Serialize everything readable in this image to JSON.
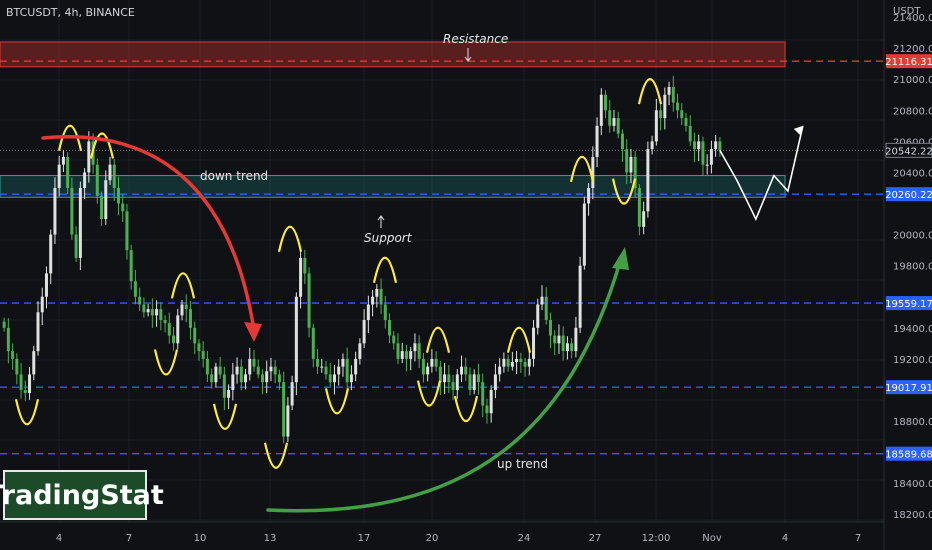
{
  "header": {
    "symbol": "BTCUSDT, 4h, BINANCE",
    "currency": "USDT"
  },
  "annotations": {
    "resistance": "Resistance",
    "support": "Support",
    "down_trend": "down trend",
    "up_trend": "up trend"
  },
  "brand": "TradingStat",
  "colors": {
    "bull": "#e0e0e0",
    "bear": "#4caf50",
    "resistance": "#e53935",
    "support": "#26a69a",
    "level": "#2962ff",
    "peak_marker": "#ffeb3b",
    "down_arrow": "#e53935",
    "up_arrow": "#43a047"
  },
  "chart_data": {
    "type": "candlestick",
    "x_ticks": [
      "4",
      "7",
      "10",
      "13",
      "17",
      "20",
      "24",
      "27",
      "12:00",
      "Nov",
      "4",
      "7"
    ],
    "y_ticks": [
      21400,
      21200,
      21000,
      20800,
      20600,
      20400,
      20000,
      19800,
      19400,
      19200,
      18800,
      18400,
      18200
    ],
    "ylim": [
      18150,
      21510
    ],
    "resistance_zone": [
      21080,
      21240
    ],
    "support_zone": [
      20240,
      20380
    ],
    "levels": [
      {
        "value": 21116.31,
        "label": "21116.31",
        "color": "#e53935"
      },
      {
        "value": 20260.22,
        "label": "20260.22",
        "color": "#2962ff"
      },
      {
        "value": 19559.17,
        "label": "19559.17",
        "color": "#2962ff"
      },
      {
        "value": 19017.91,
        "label": "19017.91",
        "color": "#2962ff"
      },
      {
        "value": 18589.68,
        "label": "18589.68",
        "color": "#2962ff"
      }
    ],
    "last_price": {
      "value": 20542.22,
      "label": "20542.22"
    },
    "close_path": [
      19400,
      19250,
      19200,
      19100,
      19000,
      18980,
      19100,
      19250,
      19500,
      19600,
      19750,
      20000,
      20300,
      20450,
      20500,
      20300,
      20000,
      19850,
      20300,
      20400,
      20600,
      20450,
      20250,
      20100,
      20350,
      20450,
      20300,
      20200,
      20150,
      19900,
      19700,
      19600,
      19550,
      19500,
      19520,
      19480,
      19520,
      19450,
      19430,
      19350,
      19300,
      19480,
      19550,
      19520,
      19400,
      19300,
      19250,
      19200,
      19100,
      19050,
      19150,
      19100,
      18950,
      19000,
      19100,
      19150,
      19050,
      19100,
      19200,
      19150,
      19100,
      19050,
      19120,
      19150,
      19100,
      19050,
      18700,
      18900,
      19050,
      19600,
      19850,
      19750,
      19400,
      19200,
      19150,
      19150,
      19100,
      19050,
      19100,
      19150,
      19200,
      19050,
      19100,
      19200,
      19300,
      19450,
      19550,
      19600,
      19650,
      19550,
      19450,
      19350,
      19300,
      19200,
      19250,
      19200,
      19250,
      19300,
      19200,
      19100,
      19150,
      19200,
      19150,
      19050,
      19100,
      19050,
      19000,
      19100,
      19150,
      19100,
      19000,
      19100,
      19050,
      18900,
      18850,
      19000,
      19100,
      19150,
      19200,
      19150,
      19180,
      19200,
      19180,
      19150,
      19200,
      19400,
      19550,
      19600,
      19450,
      19350,
      19300,
      19350,
      19250,
      19300,
      19250,
      19400,
      19800,
      20200,
      20300,
      20500,
      20700,
      20900,
      20800,
      20700,
      20750,
      20650,
      20550,
      20400,
      20500,
      20300,
      20050,
      20150,
      20550,
      20600,
      20800,
      20750,
      20900,
      20950,
      20850,
      20800,
      20750,
      20700,
      20600,
      20550,
      20600,
      20450,
      20450,
      20550,
      20600,
      20542
    ],
    "projection": [
      20542,
      20350,
      20100,
      20380,
      20280,
      20700
    ],
    "peak_marks_at": [
      70,
      102,
      183,
      290,
      385,
      438,
      519,
      582,
      650
    ],
    "trough_marks_at": [
      27,
      166,
      225,
      276,
      337,
      429,
      466,
      624
    ]
  }
}
